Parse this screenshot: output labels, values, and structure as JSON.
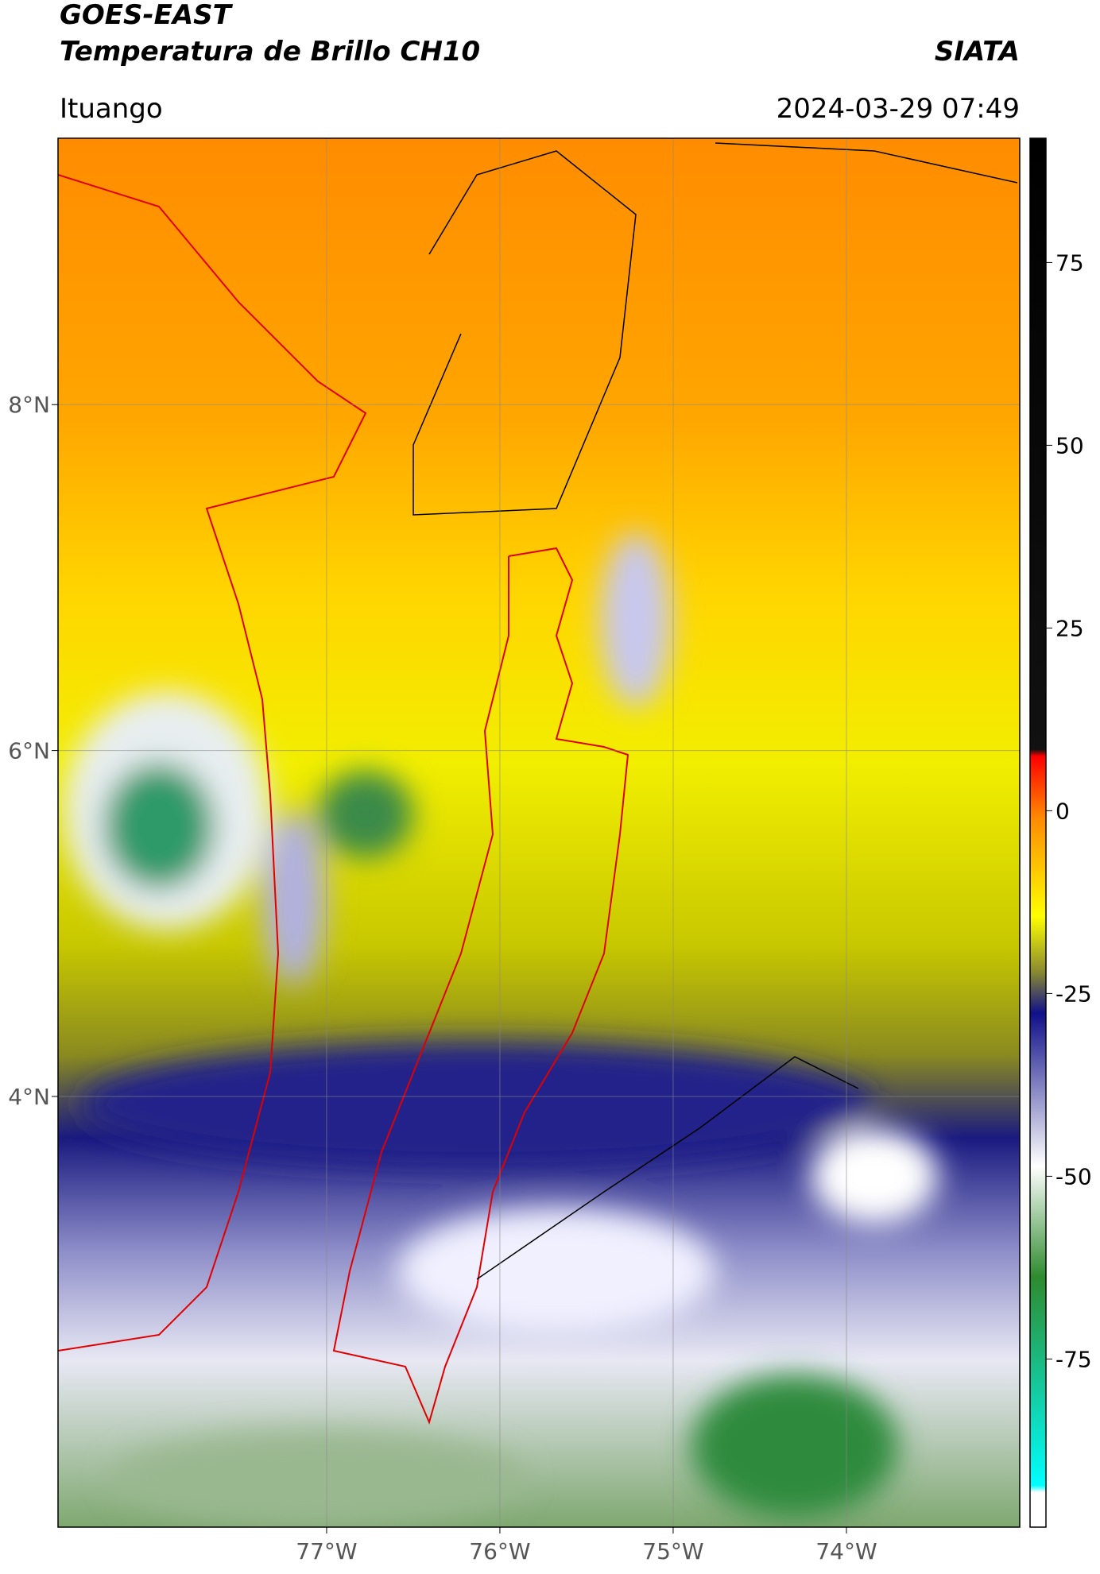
{
  "chart_data": {
    "type": "map",
    "title": "GOES-EAST",
    "subtitle": "Temperatura de Brillo CH10",
    "source": "SIATA",
    "location": "Ituango",
    "datetime": "2024-03-29 07:49",
    "xlim": [
      -78.55,
      -73.0
    ],
    "ylim": [
      1.51,
      9.54
    ],
    "xticks": [
      {
        "value": -77,
        "label": "77°W"
      },
      {
        "value": -76,
        "label": "76°W"
      },
      {
        "value": -75,
        "label": "75°W"
      },
      {
        "value": -74,
        "label": "74°W"
      }
    ],
    "yticks": [
      {
        "value": 8,
        "label": "8°N"
      },
      {
        "value": 6,
        "label": "6°N"
      },
      {
        "value": 4,
        "label": "4°N"
      }
    ],
    "grid": true,
    "colorbar": {
      "lim": [
        -98,
        92
      ],
      "ticks": [
        75,
        50,
        25,
        0,
        -25,
        -50,
        -75
      ]
    }
  }
}
